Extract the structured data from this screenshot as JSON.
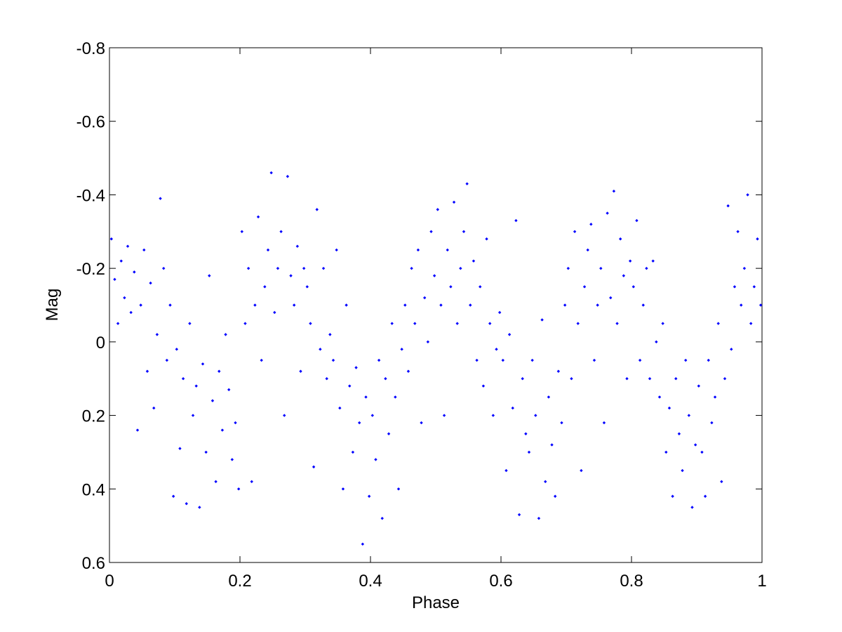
{
  "chart_data": {
    "type": "scatter",
    "xlabel": "Phase",
    "ylabel": "Mag",
    "xlim": [
      0,
      1
    ],
    "xticks": [
      0,
      0.2,
      0.4,
      0.6,
      0.8,
      1
    ],
    "ylim": [
      -0.8,
      0.6
    ],
    "yticks": [
      -0.8,
      -0.6,
      -0.4,
      -0.2,
      0,
      0.2,
      0.4,
      0.6
    ],
    "y_reversed": true,
    "grid": false,
    "series": [
      {
        "color": "#0000ff",
        "x": [
          0.003,
          0.008,
          0.013,
          0.018,
          0.023,
          0.028,
          0.033,
          0.038,
          0.043,
          0.048,
          0.053,
          0.058,
          0.063,
          0.068,
          0.073,
          0.078,
          0.083,
          0.088,
          0.093,
          0.098,
          0.103,
          0.108,
          0.113,
          0.118,
          0.123,
          0.128,
          0.133,
          0.138,
          0.143,
          0.148,
          0.153,
          0.158,
          0.163,
          0.168,
          0.173,
          0.178,
          0.183,
          0.188,
          0.193,
          0.198,
          0.203,
          0.208,
          0.213,
          0.218,
          0.223,
          0.228,
          0.233,
          0.238,
          0.243,
          0.248,
          0.253,
          0.258,
          0.263,
          0.268,
          0.273,
          0.278,
          0.283,
          0.288,
          0.293,
          0.298,
          0.303,
          0.308,
          0.313,
          0.318,
          0.323,
          0.328,
          0.333,
          0.338,
          0.343,
          0.348,
          0.353,
          0.358,
          0.363,
          0.368,
          0.373,
          0.378,
          0.383,
          0.388,
          0.393,
          0.398,
          0.403,
          0.408,
          0.413,
          0.418,
          0.423,
          0.428,
          0.433,
          0.438,
          0.443,
          0.448,
          0.453,
          0.458,
          0.463,
          0.468,
          0.473,
          0.478,
          0.483,
          0.488,
          0.493,
          0.498,
          0.503,
          0.508,
          0.513,
          0.518,
          0.523,
          0.528,
          0.533,
          0.538,
          0.543,
          0.548,
          0.553,
          0.558,
          0.563,
          0.568,
          0.573,
          0.578,
          0.583,
          0.588,
          0.593,
          0.598,
          0.603,
          0.608,
          0.613,
          0.618,
          0.623,
          0.628,
          0.633,
          0.638,
          0.643,
          0.648,
          0.653,
          0.658,
          0.663,
          0.668,
          0.673,
          0.678,
          0.683,
          0.688,
          0.693,
          0.698,
          0.703,
          0.708,
          0.713,
          0.718,
          0.723,
          0.728,
          0.733,
          0.738,
          0.743,
          0.748,
          0.753,
          0.758,
          0.763,
          0.768,
          0.773,
          0.778,
          0.783,
          0.788,
          0.793,
          0.798,
          0.803,
          0.808,
          0.813,
          0.818,
          0.823,
          0.828,
          0.833,
          0.838,
          0.843,
          0.848,
          0.853,
          0.858,
          0.863,
          0.868,
          0.873,
          0.878,
          0.883,
          0.888,
          0.893,
          0.898,
          0.903,
          0.908,
          0.913,
          0.918,
          0.923,
          0.928,
          0.933,
          0.938,
          0.943,
          0.948,
          0.953,
          0.958,
          0.963,
          0.968,
          0.973,
          0.978,
          0.983,
          0.988,
          0.993,
          0.998
        ],
        "values": [
          -0.28,
          -0.17,
          -0.05,
          -0.22,
          -0.12,
          -0.26,
          -0.08,
          -0.19,
          0.24,
          -0.1,
          -0.25,
          0.08,
          -0.16,
          0.18,
          -0.02,
          -0.39,
          -0.2,
          0.05,
          -0.1,
          0.42,
          0.02,
          0.29,
          0.1,
          0.44,
          -0.05,
          0.2,
          0.12,
          0.45,
          0.06,
          0.3,
          -0.18,
          0.16,
          0.38,
          0.08,
          0.24,
          -0.02,
          0.13,
          0.32,
          0.22,
          0.4,
          -0.3,
          -0.05,
          -0.2,
          0.38,
          -0.1,
          -0.34,
          0.05,
          -0.15,
          -0.25,
          -0.46,
          -0.08,
          -0.2,
          -0.3,
          0.2,
          -0.45,
          -0.18,
          -0.1,
          -0.26,
          0.08,
          -0.2,
          -0.15,
          -0.05,
          0.34,
          -0.36,
          0.02,
          -0.2,
          0.1,
          -0.02,
          0.05,
          -0.25,
          0.18,
          0.4,
          -0.1,
          0.12,
          0.3,
          0.07,
          0.22,
          0.55,
          0.15,
          0.42,
          0.2,
          0.32,
          0.05,
          0.48,
          0.1,
          0.25,
          -0.05,
          0.15,
          0.4,
          0.02,
          -0.1,
          0.08,
          -0.2,
          -0.05,
          -0.25,
          0.22,
          -0.12,
          0.0,
          -0.3,
          -0.18,
          -0.36,
          -0.1,
          0.2,
          -0.25,
          -0.15,
          -0.38,
          -0.05,
          -0.2,
          -0.3,
          -0.43,
          -0.1,
          -0.22,
          0.05,
          -0.15,
          0.12,
          -0.28,
          -0.05,
          0.2,
          0.02,
          -0.08,
          0.05,
          0.35,
          -0.02,
          0.18,
          -0.33,
          0.47,
          0.1,
          0.25,
          0.3,
          0.05,
          0.2,
          0.48,
          -0.06,
          0.38,
          0.15,
          0.28,
          0.42,
          0.08,
          0.22,
          -0.1,
          -0.2,
          0.1,
          -0.3,
          -0.05,
          0.35,
          -0.15,
          -0.25,
          -0.32,
          0.05,
          -0.1,
          -0.2,
          0.22,
          -0.35,
          -0.12,
          -0.41,
          -0.05,
          -0.28,
          -0.18,
          0.1,
          -0.22,
          -0.15,
          -0.33,
          0.05,
          -0.1,
          -0.2,
          0.1,
          -0.22,
          0.0,
          0.15,
          -0.05,
          0.3,
          0.18,
          0.42,
          0.1,
          0.25,
          0.35,
          0.05,
          0.2,
          0.45,
          0.28,
          0.12,
          0.3,
          0.42,
          0.05,
          0.22,
          0.15,
          -0.05,
          0.38,
          0.1,
          -0.37,
          0.02,
          -0.15,
          -0.3,
          -0.1,
          -0.2,
          -0.4,
          -0.05,
          -0.15,
          -0.28,
          -0.1
        ]
      }
    ]
  }
}
